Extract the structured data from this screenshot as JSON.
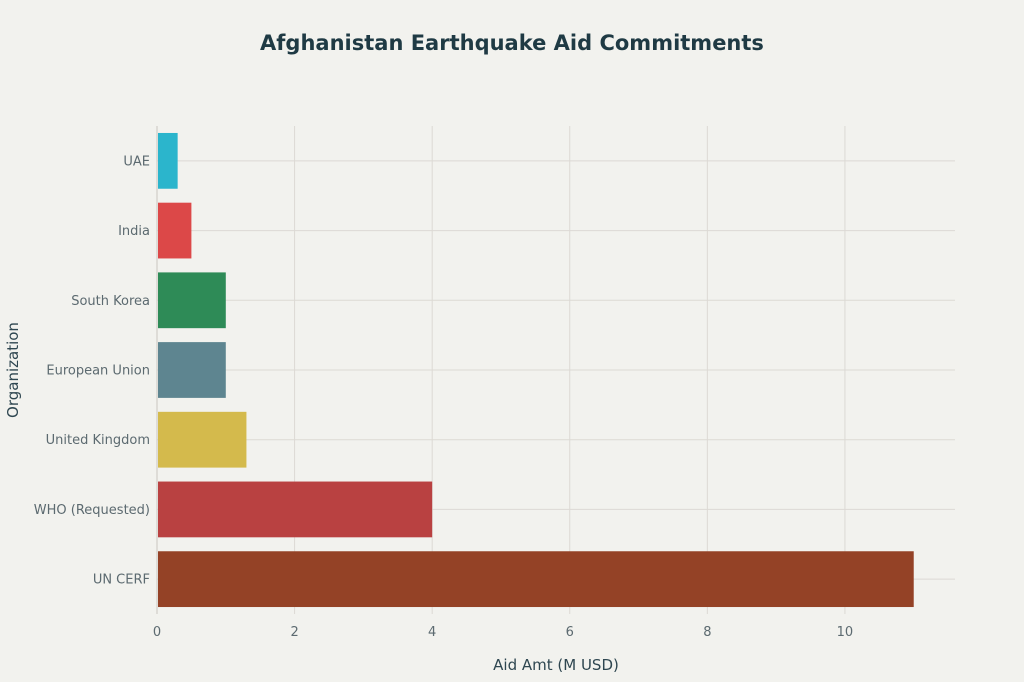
{
  "chart_data": {
    "type": "bar",
    "orientation": "horizontal",
    "title": "Afghanistan Earthquake Aid Commitments",
    "xlabel": "Aid Amt (M USD)",
    "ylabel": "Organization",
    "xlim": [
      0,
      11.6
    ],
    "xticks": [
      0,
      2,
      4,
      6,
      8,
      10
    ],
    "grid": true,
    "legend": "none",
    "categories": [
      "UAE",
      "India",
      "South Korea",
      "European Union",
      "United Kingdom",
      "WHO (Requested)",
      "UN CERF"
    ],
    "values": [
      0.3,
      0.5,
      1.0,
      1.0,
      1.3,
      4.0,
      11.0
    ],
    "colors": [
      "#2bb5cc",
      "#dc4848",
      "#2e8b57",
      "#5e8590",
      "#d4ba4c",
      "#b94141",
      "#944226"
    ]
  }
}
